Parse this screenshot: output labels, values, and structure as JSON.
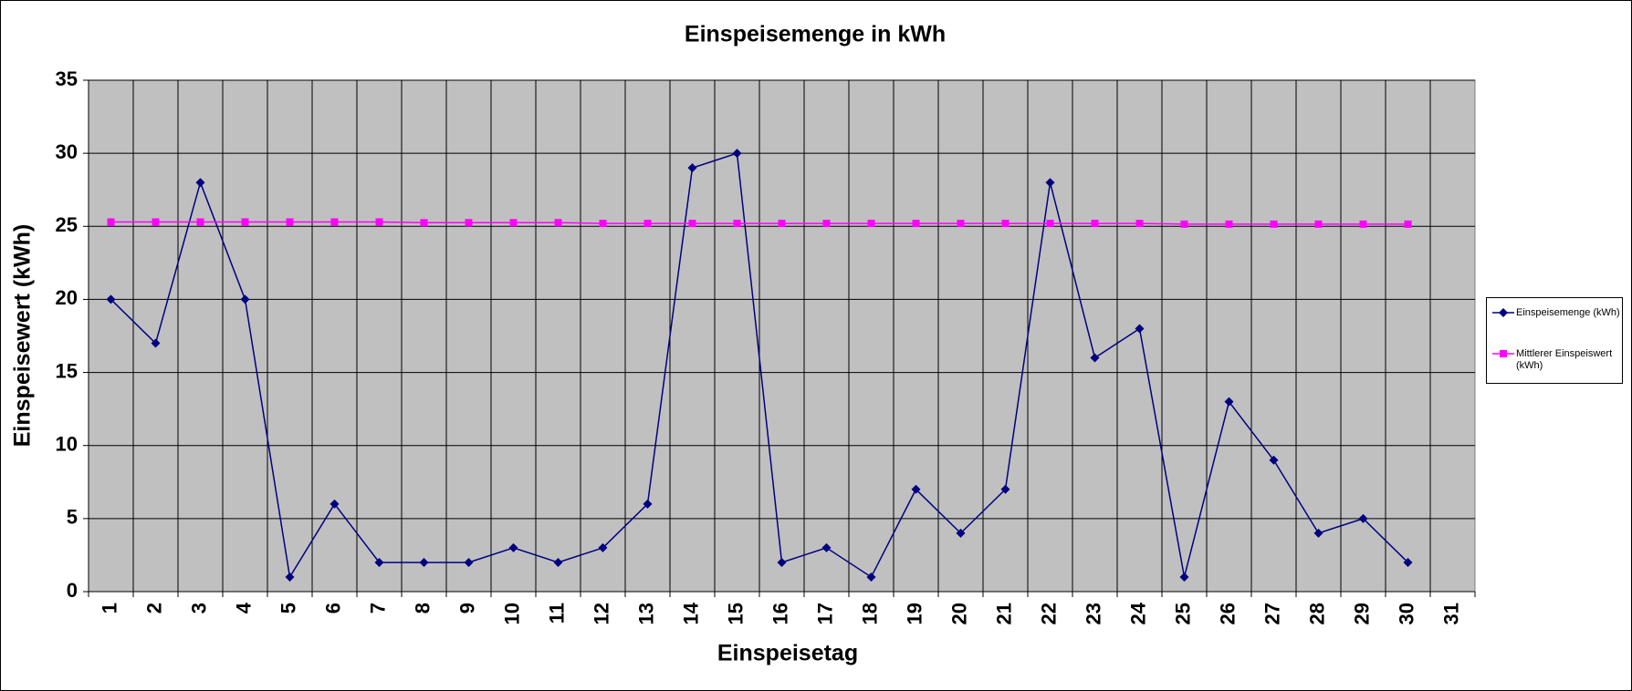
{
  "chart_data": {
    "type": "line",
    "title": "Einspeisemenge in kWh",
    "x_label": "Einspeisetag",
    "y_label": "Einspeisewert  (kWh)",
    "categories": [
      "1",
      "2",
      "3",
      "4",
      "5",
      "6",
      "7",
      "8",
      "9",
      "10",
      "11",
      "12",
      "13",
      "14",
      "15",
      "16",
      "17",
      "18",
      "19",
      "20",
      "21",
      "22",
      "23",
      "24",
      "25",
      "26",
      "27",
      "28",
      "29",
      "30",
      "31"
    ],
    "series": [
      {
        "name": "Einspeisemenge (kWh)",
        "color": "#000080",
        "marker": "diamond",
        "values": [
          20,
          17,
          28,
          20,
          1,
          6,
          2,
          2,
          2,
          3,
          2,
          3,
          6,
          29,
          30,
          2,
          3,
          1,
          7,
          4,
          7,
          28,
          16,
          18,
          1,
          13,
          9,
          4,
          5,
          2,
          null
        ]
      },
      {
        "name": "Mittlerer Einspeiswert (kWh)",
        "color": "#ff00ff",
        "marker": "square",
        "values": [
          25.3,
          25.3,
          25.3,
          25.3,
          25.3,
          25.3,
          25.3,
          25.25,
          25.25,
          25.25,
          25.25,
          25.2,
          25.2,
          25.2,
          25.2,
          25.2,
          25.2,
          25.2,
          25.2,
          25.2,
          25.2,
          25.2,
          25.2,
          25.2,
          25.15,
          25.15,
          25.15,
          25.15,
          25.15,
          25.15,
          null
        ]
      }
    ],
    "ylim": [
      0,
      35
    ],
    "yticks": [
      0,
      5,
      10,
      15,
      20,
      25,
      30,
      35
    ],
    "grid": true,
    "legend": "right",
    "plot_background": "#c0c0c0"
  }
}
